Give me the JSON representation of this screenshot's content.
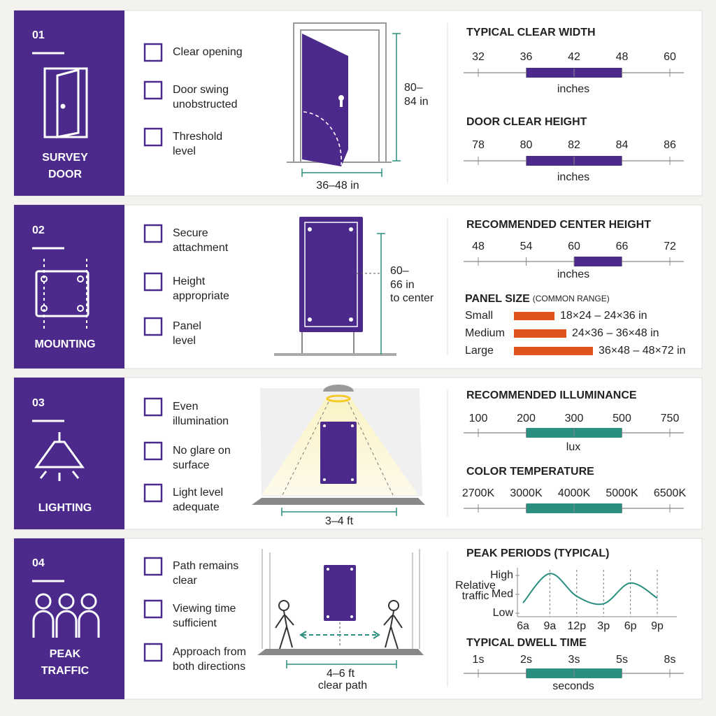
{
  "sections": [
    {
      "number": "01",
      "label": [
        "SURVEY",
        "DOOR"
      ],
      "checklist": [
        [
          "Clear opening"
        ],
        [
          "Door swing",
          "unobstructed"
        ],
        [
          "Threshold",
          "level"
        ]
      ],
      "dimensions": {
        "width": [
          "36–48 in"
        ],
        "height": [
          "80–",
          "84 in"
        ]
      },
      "scales": [
        {
          "title": "TYPICAL CLEAR WIDTH",
          "ticks": [
            32,
            36,
            42,
            48,
            60
          ],
          "range": [
            36,
            48
          ],
          "unit": "inches"
        },
        {
          "title": "DOOR CLEAR HEIGHT",
          "ticks": [
            78,
            80,
            82,
            84,
            86
          ],
          "range": [
            80,
            84
          ],
          "unit": "inches"
        }
      ]
    },
    {
      "number": "02",
      "label": [
        "MOUNTING"
      ],
      "checklist": [
        [
          "Secure",
          "attachment"
        ],
        [
          "Height",
          "appropriate"
        ],
        [
          "Panel",
          "level"
        ]
      ],
      "dimensions": {
        "height": [
          "60–",
          "66 in",
          "to center"
        ]
      },
      "scales": [
        {
          "title": "RECOMMENDED CENTER HEIGHT",
          "ticks": [
            48,
            54,
            60,
            66,
            72
          ],
          "range": [
            60,
            66
          ],
          "unit": "inches"
        }
      ],
      "panel_size": {
        "title": "PANEL SIZE",
        "subtitle": "(COMMON RANGE)",
        "rows": [
          {
            "name": "Small",
            "range": "18×24 – 24×36 in"
          },
          {
            "name": "Medium",
            "range": "24×36 – 36×48 in"
          },
          {
            "name": "Large",
            "range": "36×48 – 48×72 in"
          }
        ]
      }
    },
    {
      "number": "03",
      "label": [
        "LIGHTING"
      ],
      "checklist": [
        [
          "Even",
          "illumination"
        ],
        [
          "No glare on",
          "surface"
        ],
        [
          "Light level",
          "adequate"
        ]
      ],
      "dimensions": {
        "width": [
          "3–4 ft"
        ]
      },
      "scales": [
        {
          "title": "RECOMMENDED ILLUMINANCE",
          "ticks": [
            100,
            200,
            300,
            500,
            750
          ],
          "range": [
            200,
            500
          ],
          "unit": "lux"
        },
        {
          "title": "COLOR TEMPERATURE",
          "ticks": [
            "2700K",
            "3000K",
            "4000K",
            "5000K",
            "6500K"
          ],
          "range": [
            "3000K",
            "5000K"
          ]
        }
      ]
    },
    {
      "number": "04",
      "label": [
        "PEAK",
        "TRAFFIC"
      ],
      "checklist": [
        [
          "Path remains",
          "clear"
        ],
        [
          "Viewing time",
          "sufficient"
        ],
        [
          "Approach from",
          "both directions"
        ]
      ],
      "dimensions": {
        "width": [
          "4–6 ft",
          "clear path"
        ]
      },
      "peak_chart": {
        "title": "PEAK PERIODS (TYPICAL)",
        "ylabel": [
          "Relative",
          "traffic"
        ],
        "categories": [
          "6a",
          "9a",
          "12p",
          "3p",
          "6p",
          "9p"
        ],
        "values": [
          0.55,
          2.1,
          0.9,
          0.5,
          1.6,
          0.8
        ],
        "ylim": [
          0,
          2
        ],
        "yticks": [
          {
            "value": 0,
            "label": "Low"
          },
          {
            "value": 1,
            "label": "Med"
          },
          {
            "value": 2,
            "label": "High"
          }
        ],
        "color": "#2a8f7f"
      },
      "scales": [
        {
          "title": "TYPICAL DWELL TIME",
          "ticks": [
            "1s",
            "2s",
            "3s",
            "5s",
            "8s"
          ],
          "range": [
            "2s",
            "5s"
          ],
          "unit": "seconds"
        }
      ]
    }
  ]
}
